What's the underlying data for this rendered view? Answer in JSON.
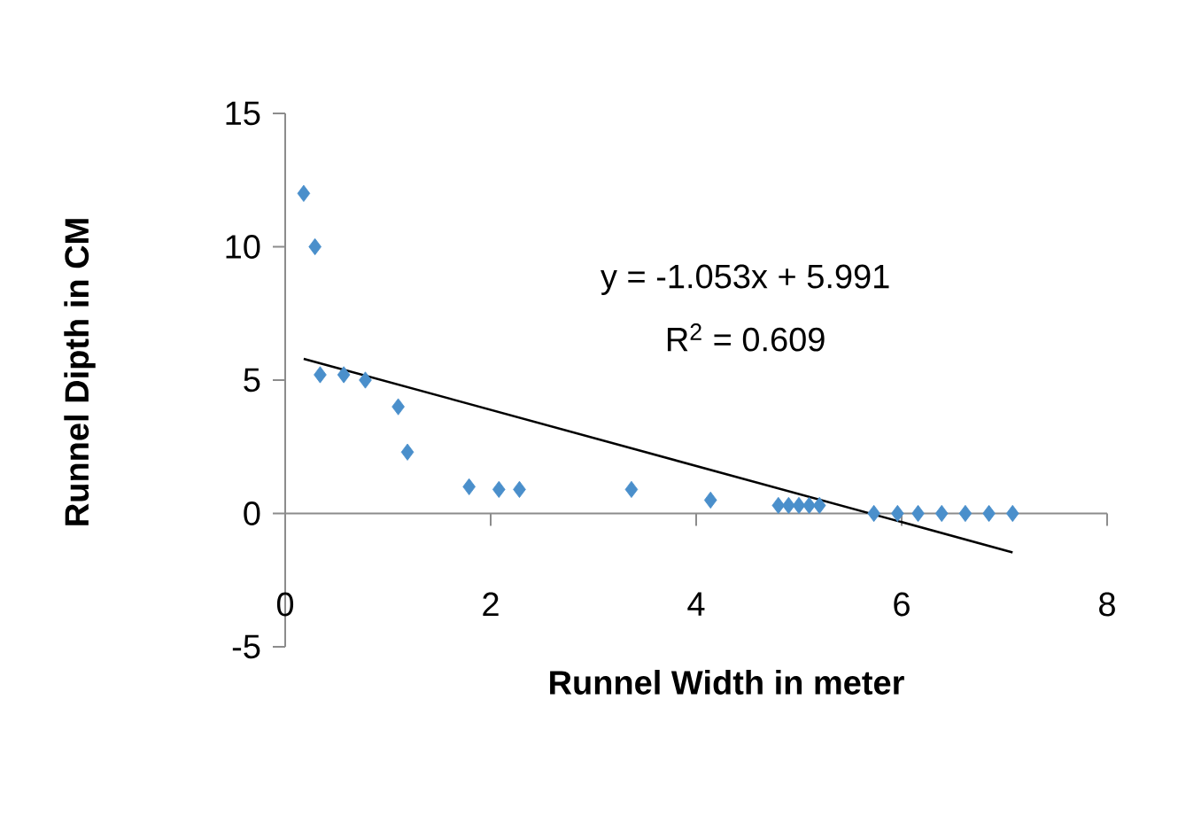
{
  "chart_data": {
    "type": "scatter",
    "xlabel": "Runnel Width in meter",
    "ylabel": "Runnel Dipth in CM",
    "xlim": [
      0,
      8
    ],
    "ylim": [
      -5,
      15
    ],
    "xticks": [
      0,
      2,
      4,
      6,
      8
    ],
    "yticks": [
      -5,
      0,
      5,
      10,
      15
    ],
    "grid": false,
    "marker": "diamond",
    "series": [
      {
        "color": "#4a8fcb",
        "x": [
          0.18,
          0.29,
          0.34,
          0.57,
          0.78,
          1.1,
          1.19,
          1.79,
          2.08,
          2.28,
          3.37,
          4.14,
          4.8,
          4.9,
          5.0,
          5.1,
          5.2,
          5.73,
          5.96,
          6.16,
          6.39,
          6.62,
          6.85,
          7.08
        ],
        "values": [
          12,
          10,
          5.2,
          5.2,
          5.0,
          4.0,
          2.3,
          1.0,
          0.9,
          0.9,
          0.9,
          0.5,
          0.3,
          0.3,
          0.3,
          0.3,
          0.3,
          0,
          0,
          0,
          0,
          0,
          0,
          0
        ]
      },
      {
        "type": "line",
        "color": "#000000",
        "marker": "none",
        "x": [
          0.18,
          7.08
        ],
        "values": [
          5.8,
          -1.46
        ]
      }
    ],
    "annotations": [
      "y = -1.053x + 5.991",
      "R$^{2}$ = 0.609"
    ]
  }
}
